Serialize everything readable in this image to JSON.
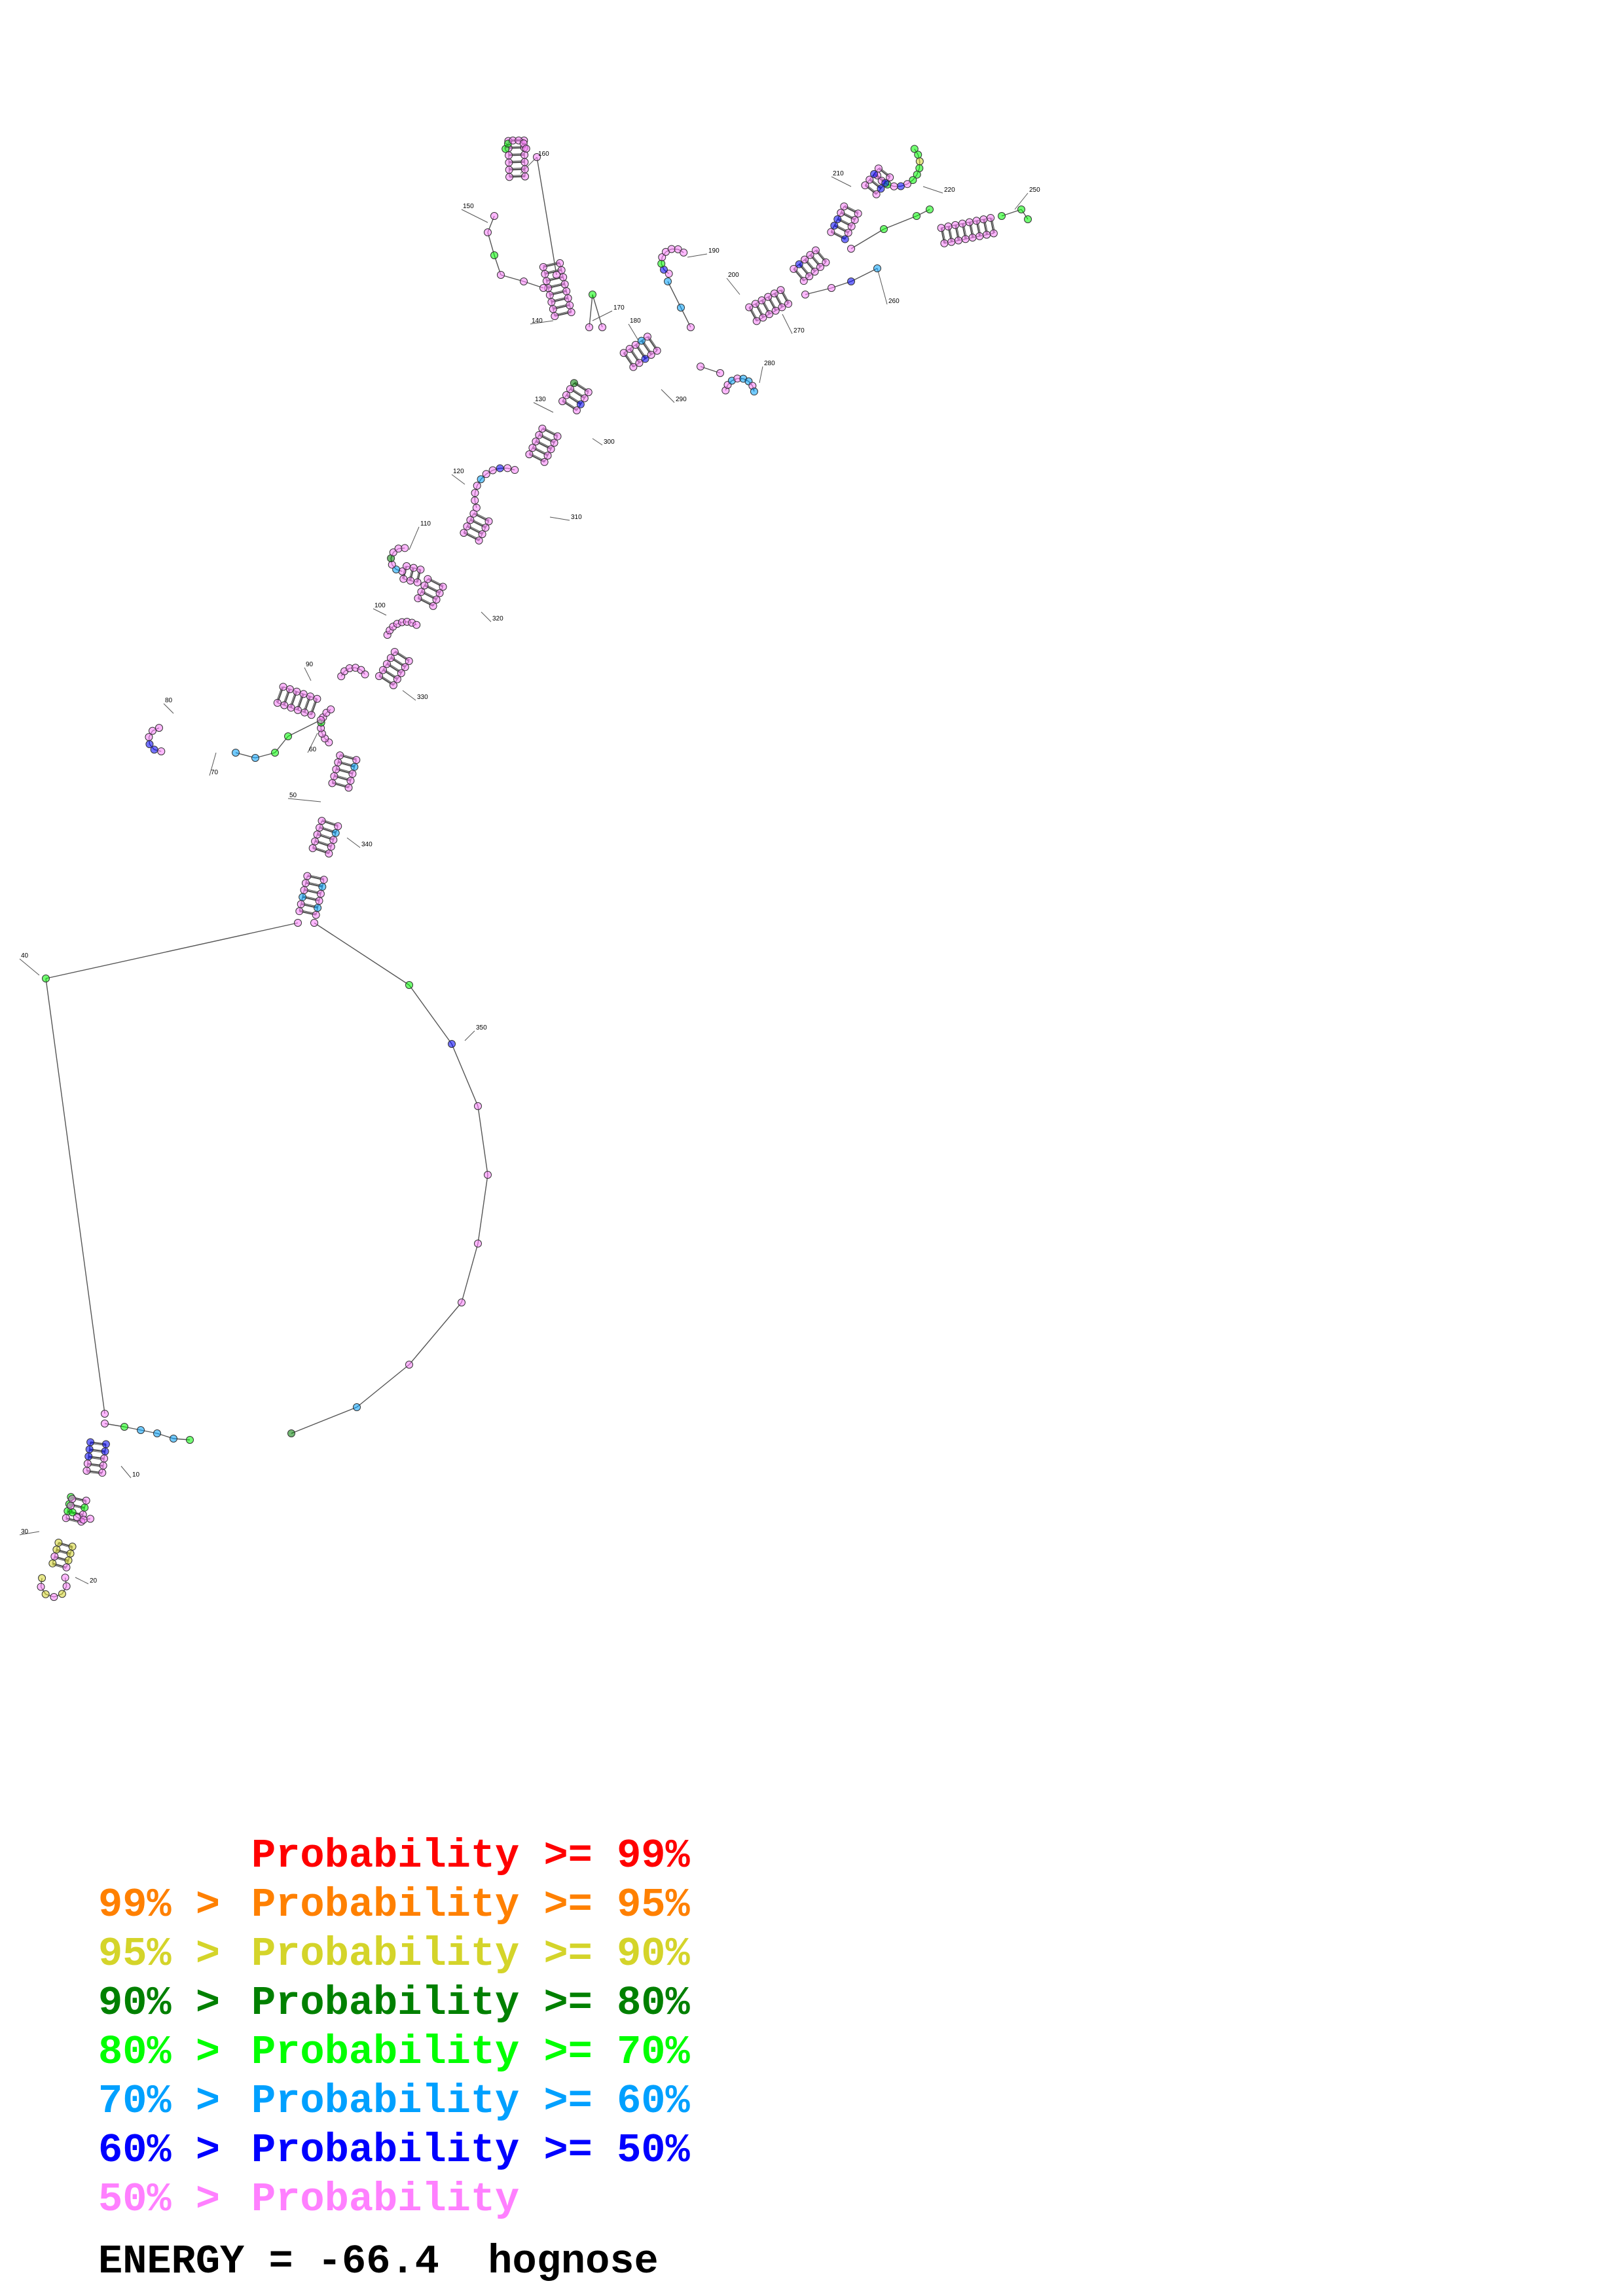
{
  "diagram": {
    "type": "rna-secondary-structure",
    "position_labels": [
      "10",
      "20",
      "30",
      "40",
      "50",
      "60",
      "70",
      "80",
      "90",
      "100",
      "110",
      "120",
      "130",
      "140",
      "150",
      "160",
      "170",
      "180",
      "190",
      "200",
      "210",
      "220",
      "250",
      "260",
      "270",
      "280",
      "290",
      "300",
      "310",
      "320",
      "330",
      "340",
      "350"
    ]
  },
  "legend": {
    "entries": [
      {
        "range": "",
        "label": "Probability >= 99%",
        "color": "#ff0000"
      },
      {
        "range": "99% > ",
        "label": "Probability >= 95%",
        "color": "#ff8000"
      },
      {
        "range": "95% > ",
        "label": "Probability >= 90%",
        "color": "#d4d42a"
      },
      {
        "range": "90% > ",
        "label": "Probability >= 80%",
        "color": "#008000"
      },
      {
        "range": "80% > ",
        "label": "Probability >= 70%",
        "color": "#00ff00"
      },
      {
        "range": "70% > ",
        "label": "Probability >= 60%",
        "color": "#00a0ff"
      },
      {
        "range": "60% > ",
        "label": "Probability >= 50%",
        "color": "#0000ff"
      },
      {
        "range": "50% > ",
        "label": "Probability",
        "color": "#ff80ff"
      }
    ],
    "energy_text": "ENERGY = -66.4  hognose"
  }
}
